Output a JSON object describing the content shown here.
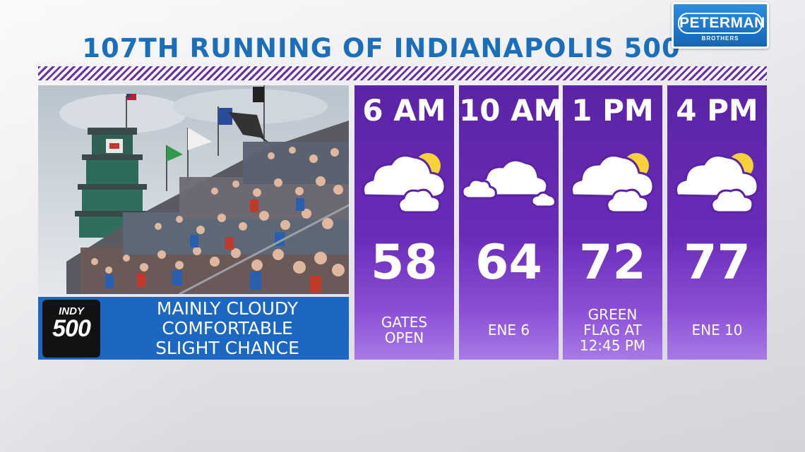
{
  "header": {
    "title": "107TH RUNNING OF INDIANAPOLIS 500"
  },
  "sponsor": {
    "name": "PETERMAN",
    "subtitle": "BROTHERS",
    "color": "#1b6fc4"
  },
  "summary": {
    "logo_top": "INDY",
    "logo_number": "500",
    "lines": [
      "MAINLY CLOUDY",
      "COMFORTABLE",
      "SLIGHT CHANCE"
    ]
  },
  "forecast": [
    {
      "time": "6 AM",
      "icon": "partly-cloudy-icon",
      "temp": "58",
      "note": [
        "GATES",
        "OPEN"
      ]
    },
    {
      "time": "10 AM",
      "icon": "cloudy-icon",
      "temp": "64",
      "note": [
        "ENE 6"
      ]
    },
    {
      "time": "1 PM",
      "icon": "partly-cloudy-icon",
      "temp": "72",
      "note": [
        "GREEN",
        "FLAG AT",
        "12:45 PM"
      ]
    },
    {
      "time": "4 PM",
      "icon": "partly-cloudy-icon",
      "temp": "77",
      "note": [
        "ENE 10"
      ]
    }
  ],
  "colors": {
    "title": "#1a6fb8",
    "column": "#5b23a6",
    "stripe": "#6a2fb0",
    "summary_bg": "#1b67c2",
    "sun": "#f5d13a"
  }
}
